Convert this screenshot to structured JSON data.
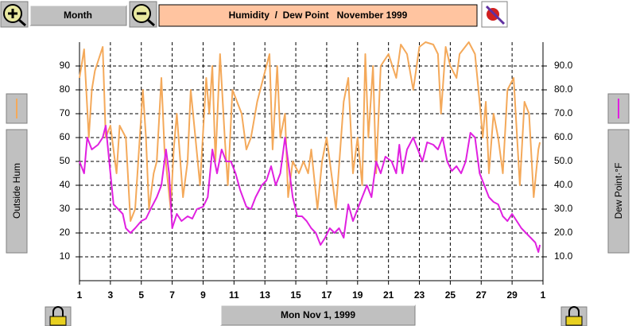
{
  "ui": {
    "period_button": "Month",
    "date_button": "Mon Nov 1, 1999"
  },
  "chart_data": {
    "type": "line",
    "title": "Humidity  /  Dew Point   November 1999",
    "xlim": [
      1,
      31
    ],
    "xticks": [
      1,
      3,
      5,
      7,
      9,
      11,
      13,
      15,
      17,
      19,
      21,
      23,
      25,
      27,
      29,
      {
        "value": 31,
        "label": "1"
      }
    ],
    "ylim": [
      0,
      100
    ],
    "yticks": [
      10,
      20,
      30,
      40,
      50,
      60,
      70,
      80,
      90
    ],
    "y2lim": [
      0,
      100
    ],
    "y2ticks": [
      {
        "value": 10,
        "label": "10.0"
      },
      {
        "value": 20,
        "label": "20.0"
      },
      {
        "value": 30,
        "label": "30.0"
      },
      {
        "value": 40,
        "label": "40.0"
      },
      {
        "value": 50,
        "label": "50.0"
      },
      {
        "value": 60,
        "label": "60.0"
      },
      {
        "value": 70,
        "label": "70.0"
      },
      {
        "value": 80,
        "label": "80.0"
      },
      {
        "value": 90,
        "label": "90.0"
      }
    ],
    "grid": true,
    "series": [
      {
        "name": "Outside Hum",
        "color": "#f4a95a",
        "x": [
          1,
          1.3,
          1.6,
          1.8,
          2.0,
          2.5,
          2.7,
          3.0,
          3.4,
          3.6,
          4.0,
          4.3,
          4.6,
          5.1,
          5.3,
          5.5,
          5.8,
          6.0,
          6.3,
          6.5,
          6.9,
          7.1,
          7.3,
          7.7,
          8.0,
          8.2,
          8.5,
          8.8,
          9.2,
          9.4,
          9.6,
          9.8,
          10.1,
          10.4,
          10.6,
          10.9,
          11.2,
          11.5,
          11.8,
          12.1,
          12.5,
          13.1,
          13.3,
          13.5,
          13.8,
          14.0,
          14.3,
          14.5,
          14.8,
          15.2,
          15.5,
          15.8,
          16.0,
          16.4,
          16.7,
          17.0,
          17.3,
          17.6,
          18.1,
          18.4,
          18.7,
          19.0,
          19.3,
          19.5,
          19.7,
          20.0,
          20.2,
          20.5,
          21.0,
          21.5,
          21.8,
          22.2,
          22.6,
          23.0,
          23.4,
          23.9,
          24.2,
          24.4,
          24.7,
          25.0,
          25.4,
          25.6,
          26.2,
          26.6,
          26.9,
          27.1,
          27.3,
          27.5,
          27.8,
          28.1,
          28.4,
          28.7,
          29.1,
          29.5,
          29.8,
          30.1,
          30.4,
          30.7,
          30.8
        ],
        "values": [
          85,
          97,
          60,
          80,
          88,
          98,
          60,
          65,
          45,
          65,
          60,
          25,
          30,
          80,
          60,
          30,
          45,
          50,
          85,
          55,
          30,
          55,
          70,
          35,
          50,
          80,
          60,
          40,
          85,
          70,
          90,
          50,
          95,
          60,
          40,
          80,
          75,
          70,
          55,
          60,
          75,
          90,
          95,
          55,
          90,
          60,
          70,
          35,
          50,
          45,
          50,
          45,
          55,
          30,
          50,
          60,
          45,
          30,
          75,
          85,
          45,
          60,
          40,
          95,
          60,
          90,
          45,
          90,
          95,
          85,
          99,
          95,
          80,
          98,
          100,
          99,
          95,
          70,
          98,
          90,
          85,
          95,
          100,
          95,
          75,
          60,
          75,
          45,
          70,
          60,
          45,
          80,
          85,
          40,
          75,
          70,
          35,
          55,
          58
        ]
      },
      {
        "name": "Dew Point·°F",
        "color": "#e020e0",
        "axis": "y2",
        "x": [
          1,
          1.3,
          1.5,
          1.8,
          2.2,
          2.5,
          2.7,
          3.0,
          3.2,
          3.5,
          3.8,
          4.0,
          4.3,
          4.6,
          5.0,
          5.3,
          5.6,
          6.0,
          6.3,
          6.6,
          6.8,
          7.0,
          7.3,
          7.6,
          8.0,
          8.3,
          8.6,
          9.0,
          9.3,
          9.6,
          9.9,
          10.2,
          10.5,
          10.8,
          11.1,
          11.4,
          11.8,
          12.1,
          12.4,
          12.8,
          13.1,
          13.4,
          13.7,
          14.0,
          14.3,
          14.5,
          14.8,
          15.1,
          15.4,
          15.7,
          16.0,
          16.3,
          16.6,
          16.9,
          17.2,
          17.5,
          17.8,
          18.1,
          18.4,
          18.7,
          19.0,
          19.3,
          19.6,
          19.9,
          20.2,
          20.5,
          20.8,
          21.2,
          21.5,
          21.7,
          21.9,
          22.2,
          22.6,
          22.9,
          23.2,
          23.5,
          23.9,
          24.2,
          24.5,
          24.8,
          25.1,
          25.4,
          25.7,
          26.0,
          26.3,
          26.6,
          26.9,
          27.2,
          27.5,
          27.8,
          28.1,
          28.4,
          28.7,
          29.0,
          29.3,
          29.6,
          29.9,
          30.2,
          30.5,
          30.7,
          30.8
        ],
        "values": [
          50,
          45,
          60,
          55,
          57,
          60,
          65,
          45,
          32,
          30,
          28,
          22,
          20,
          22,
          25,
          26,
          30,
          35,
          40,
          55,
          45,
          22,
          28,
          25,
          27,
          26,
          30,
          31,
          35,
          55,
          45,
          55,
          50,
          50,
          45,
          38,
          31,
          30,
          35,
          40,
          42,
          48,
          40,
          45,
          60,
          50,
          35,
          27,
          27,
          25,
          22,
          20,
          15,
          18,
          22,
          20,
          22,
          18,
          32,
          25,
          30,
          35,
          40,
          35,
          50,
          45,
          52,
          50,
          45,
          57,
          45,
          55,
          60,
          55,
          50,
          58,
          57,
          55,
          60,
          50,
          46,
          48,
          45,
          50,
          62,
          60,
          45,
          40,
          35,
          33,
          32,
          27,
          25,
          28,
          25,
          22,
          20,
          18,
          16,
          12,
          15
        ]
      }
    ]
  }
}
